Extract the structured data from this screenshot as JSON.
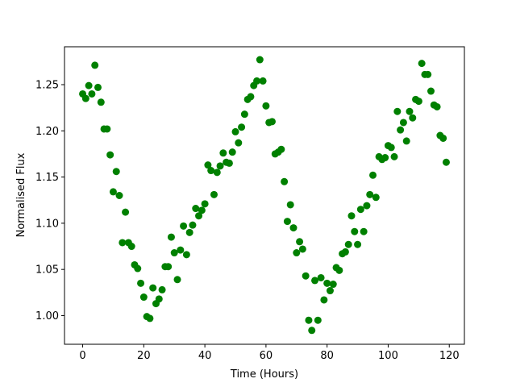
{
  "chart_data": {
    "type": "scatter",
    "x_label": "Time (Hours)",
    "y_label": "Normalised Flux",
    "series": [
      {
        "color": "#008000",
        "x": [
          0,
          1,
          2,
          3,
          4,
          5,
          6,
          7,
          8,
          9,
          10,
          11,
          12,
          13,
          14,
          15,
          16,
          17,
          18,
          19,
          20,
          21,
          22,
          23,
          24,
          25,
          26,
          27,
          28,
          29,
          30,
          31,
          32,
          33,
          34,
          35,
          36,
          37,
          38,
          39,
          40,
          41,
          42,
          43,
          44,
          45,
          46,
          47,
          48,
          49,
          50,
          51,
          52,
          53,
          54,
          55,
          56,
          57,
          58,
          59,
          60,
          61,
          62,
          63,
          64,
          65,
          66,
          67,
          68,
          69,
          70,
          71,
          72,
          73,
          74,
          75,
          76,
          77,
          78,
          79,
          80,
          81,
          82,
          83,
          84,
          85,
          86,
          87,
          88,
          89,
          90,
          91,
          92,
          93,
          94,
          95,
          96,
          97,
          98,
          99,
          100,
          101,
          102,
          103,
          104,
          105,
          106,
          107,
          108,
          109,
          110,
          111,
          112,
          113,
          114,
          115,
          116,
          117,
          118,
          119
        ],
        "values": [
          1.24,
          1.235,
          1.249,
          1.24,
          1.271,
          1.247,
          1.231,
          1.202,
          1.202,
          1.174,
          1.134,
          1.156,
          1.13,
          1.079,
          1.112,
          1.079,
          1.075,
          1.055,
          1.051,
          1.035,
          1.02,
          0.999,
          0.997,
          1.03,
          1.013,
          1.018,
          1.028,
          1.053,
          1.053,
          1.085,
          1.068,
          1.039,
          1.071,
          1.097,
          1.066,
          1.09,
          1.098,
          1.116,
          1.108,
          1.114,
          1.121,
          1.163,
          1.157,
          1.131,
          1.155,
          1.162,
          1.176,
          1.166,
          1.165,
          1.177,
          1.199,
          1.187,
          1.204,
          1.218,
          1.234,
          1.237,
          1.249,
          1.254,
          1.277,
          1.254,
          1.227,
          1.209,
          1.21,
          1.175,
          1.177,
          1.18,
          1.145,
          1.102,
          1.12,
          1.095,
          1.068,
          1.08,
          1.072,
          1.043,
          0.995,
          0.984,
          1.038,
          0.995,
          1.041,
          1.017,
          1.035,
          1.027,
          1.034,
          1.052,
          1.049,
          1.067,
          1.069,
          1.077,
          1.108,
          1.091,
          1.077,
          1.115,
          1.091,
          1.119,
          1.131,
          1.152,
          1.128,
          1.172,
          1.169,
          1.171,
          1.184,
          1.182,
          1.172,
          1.221,
          1.201,
          1.209,
          1.189,
          1.221,
          1.214,
          1.234,
          1.232,
          1.273,
          1.261,
          1.261,
          1.243,
          1.228,
          1.226,
          1.195,
          1.192,
          1.166
        ]
      }
    ],
    "xlim": [
      -5.95,
      124.95
    ],
    "xticks": [
      0,
      20,
      40,
      60,
      80,
      100,
      120
    ],
    "ylim": [
      0.969,
      1.291
    ],
    "yticks": [
      {
        "value": 1,
        "label": "1.00"
      },
      1.05,
      {
        "value": 1.1,
        "label": "1.10"
      },
      1.15,
      {
        "value": 1.2,
        "label": "1.20"
      },
      1.25
    ],
    "grid": false
  }
}
